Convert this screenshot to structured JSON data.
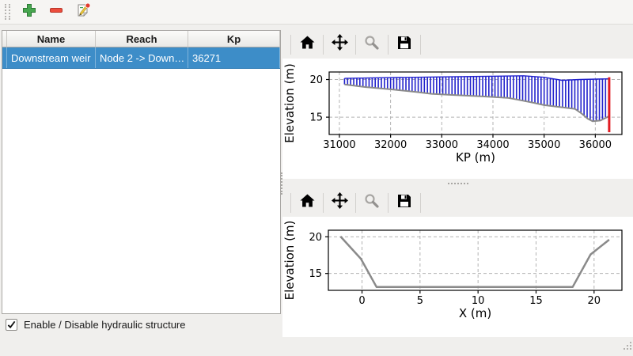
{
  "toolbar": {
    "buttons": [
      {
        "name": "add",
        "icon": "plus-icon",
        "color": "#47a64f"
      },
      {
        "name": "remove",
        "icon": "minus-icon",
        "color": "#ec4d3d"
      },
      {
        "name": "edit",
        "icon": "edit-document-icon",
        "badge_color": "#e23b2e"
      }
    ]
  },
  "table": {
    "columns": [
      "Name",
      "Reach",
      "Kp"
    ],
    "rows": [
      {
        "name": "Downstream weir",
        "reach": "Node 2 -> Down…",
        "kp": "36271",
        "selected": true
      }
    ],
    "selection_color": "#3d8dc8"
  },
  "checkbox": {
    "label": "Enable / Disable hydraulic structure",
    "checked": true
  },
  "plot_toolbars": {
    "buttons": [
      {
        "icon": "home",
        "enabled": true
      },
      {
        "icon": "pan",
        "enabled": true
      },
      {
        "icon": "zoom",
        "enabled": false
      },
      {
        "icon": "save",
        "enabled": true
      }
    ]
  },
  "chart_data": [
    {
      "id": "profile",
      "type": "area",
      "title": "",
      "xlabel": "KP (m)",
      "ylabel": "Elevation (m)",
      "xlim": [
        30800,
        36520
      ],
      "ylim": [
        12.7,
        21.0
      ],
      "xticks": [
        31000,
        32000,
        33000,
        34000,
        35000,
        36000
      ],
      "yticks": [
        15,
        20
      ],
      "grid": true,
      "series": [
        {
          "name": "top-edge",
          "color": "#2222cc",
          "width": 1.4,
          "points": [
            [
              31100,
              20.15
            ],
            [
              32000,
              20.25
            ],
            [
              33000,
              20.35
            ],
            [
              34600,
              20.5
            ],
            [
              35000,
              20.3
            ],
            [
              35350,
              19.9
            ],
            [
              35700,
              20.0
            ],
            [
              36250,
              20.1
            ]
          ]
        },
        {
          "name": "bottom-profile",
          "color": "#8a8a8a",
          "width": 2,
          "points": [
            [
              31100,
              19.35
            ],
            [
              31500,
              19.0
            ],
            [
              32000,
              18.7
            ],
            [
              32500,
              18.35
            ],
            [
              32800,
              18.1
            ],
            [
              33200,
              17.95
            ],
            [
              33800,
              17.75
            ],
            [
              34300,
              17.55
            ],
            [
              34500,
              17.3
            ],
            [
              34800,
              16.9
            ],
            [
              35000,
              16.6
            ],
            [
              35300,
              16.35
            ],
            [
              35600,
              16.1
            ],
            [
              35720,
              15.55
            ],
            [
              35850,
              14.8
            ],
            [
              35950,
              14.45
            ],
            [
              36100,
              14.55
            ],
            [
              36200,
              14.9
            ],
            [
              36270,
              15.15
            ]
          ]
        }
      ],
      "hatch": {
        "color": "#2222cc",
        "from": 31100,
        "to": 36250,
        "step": 60
      },
      "marker_line": {
        "x": 36271,
        "y0": 13.0,
        "y1": 20.3,
        "color": "#e11b22"
      }
    },
    {
      "id": "cross-section",
      "type": "line",
      "title": "",
      "xlabel": "X (m)",
      "ylabel": "Elevation (m)",
      "xlim": [
        -2.9,
        22.4
      ],
      "ylim": [
        12.7,
        20.9
      ],
      "xticks": [
        0,
        5,
        10,
        15,
        20
      ],
      "yticks": [
        15,
        20
      ],
      "grid": true,
      "series": [
        {
          "name": "cross-section-line",
          "color": "#8a8a8a",
          "width": 2.5,
          "points": [
            [
              -1.86,
              20.05
            ],
            [
              -0.1,
              17.0
            ],
            [
              1.25,
              13.15
            ],
            [
              18.15,
              13.15
            ],
            [
              19.7,
              17.6
            ],
            [
              21.3,
              19.6
            ]
          ]
        }
      ]
    }
  ]
}
